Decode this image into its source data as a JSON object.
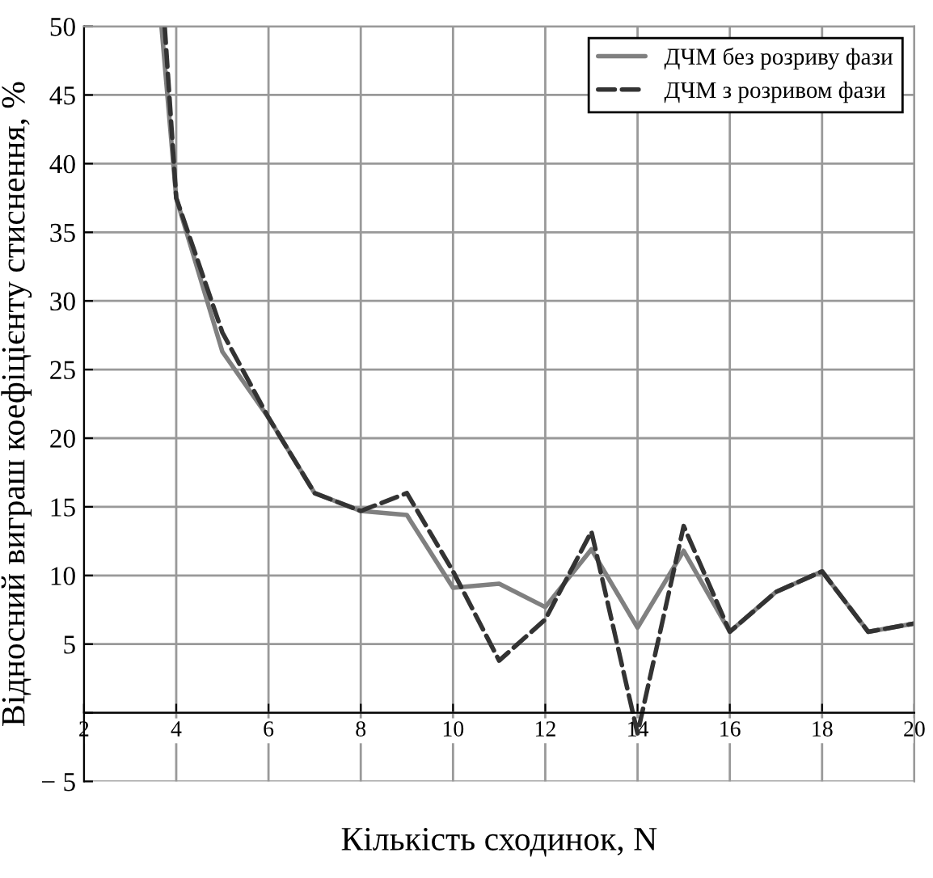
{
  "chart_data": {
    "type": "line",
    "xlabel": "Кількість сходинок, N",
    "ylabel": "Відносний виграш коефіцієнту стиснення, %",
    "xlim": [
      2,
      20
    ],
    "xticks": [
      2,
      4,
      6,
      8,
      10,
      12,
      14,
      16,
      18,
      20
    ],
    "ylim": [
      -5,
      50
    ],
    "yticks": [
      {
        "value": -5,
        "label": "− 5"
      },
      {
        "value": 0,
        "label": null
      },
      5,
      10,
      15,
      20,
      25,
      30,
      35,
      40,
      45,
      50
    ],
    "grid": true,
    "legend": "top right",
    "series": [
      {
        "name": "ДЧМ без розриву фази",
        "color": "#808080",
        "line_style": "solid",
        "x": [
          3.68,
          4,
          5,
          6,
          7,
          8,
          9,
          10,
          11,
          12,
          13,
          14,
          15,
          16,
          17,
          18,
          19,
          20
        ],
        "values": [
          50,
          37.5,
          26.3,
          21.5,
          16,
          14.7,
          14.4,
          9.1,
          9.4,
          7.7,
          11.9,
          6.2,
          11.8,
          5.9,
          8.8,
          10.3,
          5.9,
          6.5
        ]
      },
      {
        "name": "ДЧМ з розривом фази",
        "color": "#333333",
        "line_style": "dashed",
        "x": [
          3.75,
          4,
          5,
          6,
          7,
          8,
          9,
          10,
          11,
          12,
          13,
          14,
          15,
          16,
          17,
          18,
          19,
          20
        ],
        "values": [
          50,
          37.5,
          27.7,
          21.5,
          16,
          14.7,
          16,
          10.3,
          3.8,
          6.8,
          13.2,
          -1.5,
          13.6,
          5.9,
          8.8,
          10.3,
          5.9,
          6.5
        ]
      }
    ]
  }
}
